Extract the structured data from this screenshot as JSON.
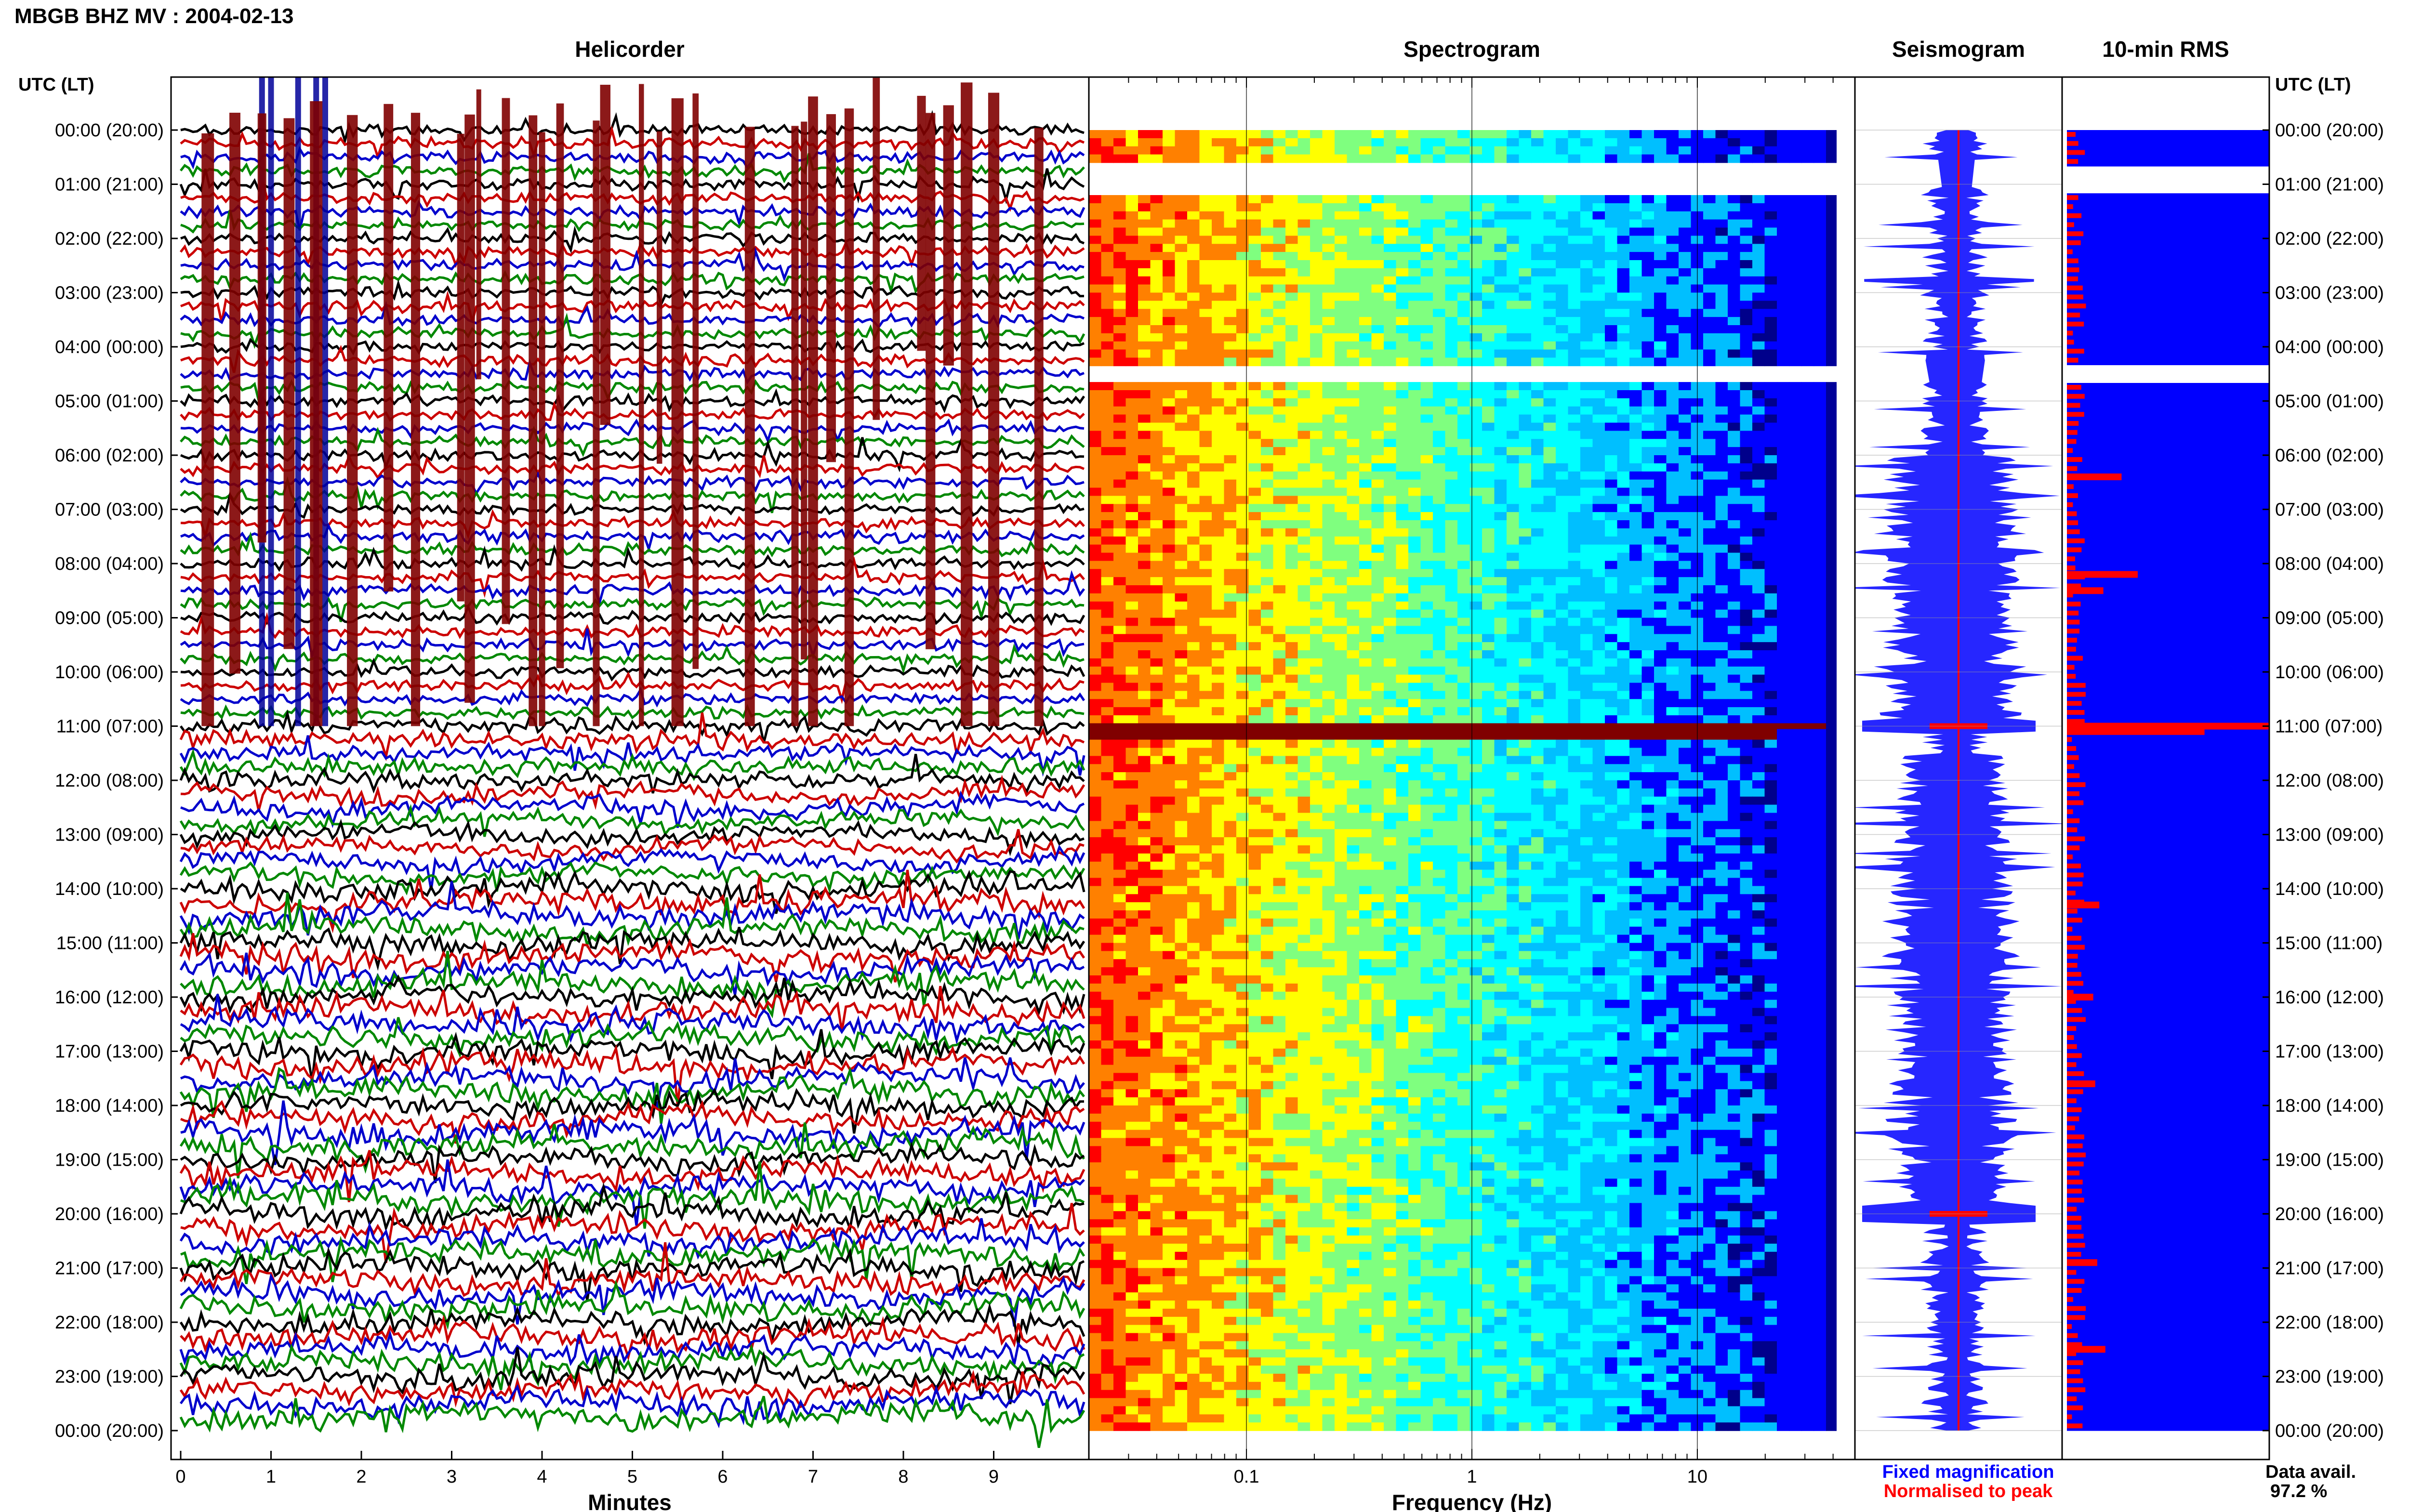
{
  "header": {
    "title": "MBGB BHZ MV : 2004-02-13"
  },
  "panels": {
    "helicorder": "Helicorder",
    "spectrogram": "Spectrogram",
    "seismogram": "Seismogram",
    "rms": "10-min RMS"
  },
  "time_axis": {
    "label": "UTC (LT)",
    "hours": [
      "00:00 (20:00)",
      "01:00 (21:00)",
      "02:00 (22:00)",
      "03:00 (23:00)",
      "04:00 (00:00)",
      "05:00 (01:00)",
      "06:00 (02:00)",
      "07:00 (03:00)",
      "08:00 (04:00)",
      "09:00 (05:00)",
      "10:00 (06:00)",
      "11:00 (07:00)",
      "12:00 (08:00)",
      "13:00 (09:00)",
      "14:00 (10:00)",
      "15:00 (11:00)",
      "16:00 (12:00)",
      "17:00 (13:00)",
      "18:00 (14:00)",
      "19:00 (15:00)",
      "20:00 (16:00)",
      "21:00 (17:00)",
      "22:00 (18:00)",
      "23:00 (19:00)",
      "00:00 (20:00)"
    ]
  },
  "legend": {
    "fixed": "Fixed magnification",
    "normalised": "Normalised to peak",
    "fixed_color": "#0000ff",
    "normalised_color": "#ff0000"
  },
  "availability": {
    "label": "Data avail.",
    "value": "97.2 %"
  },
  "chart_data": [
    {
      "type": "line",
      "panel": "helicorder",
      "xlabel": "Minutes",
      "x_ticks": [
        "0",
        "1",
        "2",
        "3",
        "4",
        "5",
        "6",
        "7",
        "8",
        "9"
      ],
      "xlim": [
        0,
        10
      ],
      "trace_colors": [
        "#000000",
        "#cc0000",
        "#0000cc",
        "#008800"
      ],
      "event_color": "#800000",
      "events": [
        {
          "hour": 0,
          "minutes": [
            0.9,
            3.1,
            3.3,
            4.2,
            4.7,
            5.3,
            6.9,
            7.2,
            8.2,
            8.5
          ]
        },
        {
          "hour": 1,
          "minutes": [
            1.2,
            3.6,
            5.7,
            7.7
          ]
        },
        {
          "hour": 3,
          "minutes": [
            0.6,
            2.3,
            4.0,
            6.3,
            8.3
          ]
        },
        {
          "hour": 5,
          "minutes": [
            1.5,
            3.2,
            5.1,
            7.4,
            9.0
          ]
        },
        {
          "hour": 7,
          "minutes": [
            0.3,
            2.6,
            4.6,
            6.8,
            8.7
          ]
        },
        {
          "hour": 9,
          "minutes": [
            1.9,
            3.9,
            5.5,
            7.0,
            9.5
          ]
        }
      ],
      "low_freq_blue_minutes": [
        0.9,
        1.0,
        1.3,
        1.5,
        1.6
      ]
    },
    {
      "type": "heatmap",
      "panel": "spectrogram",
      "xlabel": "Frequency (Hz)",
      "x_scale": "log",
      "xlim": [
        0.02,
        50
      ],
      "x_ticks": [
        "0.1",
        "1",
        "10"
      ],
      "x_tick_values": [
        0.1,
        1,
        10
      ],
      "colormap": [
        "#00008b",
        "#0000ff",
        "#00bfff",
        "#00ffff",
        "#7fff7f",
        "#ffff00",
        "#ff8000",
        "#ff0000",
        "#800000"
      ],
      "gaps_hours": [
        [
          0.6,
          1.1
        ],
        [
          4.3,
          4.6
        ]
      ],
      "strong_hour": 11.0
    },
    {
      "type": "area",
      "panel": "seismogram",
      "series": [
        {
          "name": "Fixed magnification",
          "color": "#0000ff"
        },
        {
          "name": "Normalised to peak",
          "color": "#ff0000"
        }
      ],
      "spike_hours": [
        11.0,
        20.0
      ]
    },
    {
      "type": "bar",
      "panel": "rms",
      "orientation": "horizontal",
      "bar_color": "#0000ff",
      "peak_color": "#ff0000",
      "peak_spikes": [
        {
          "hour": 6.4,
          "value": 0.27
        },
        {
          "hour": 8.2,
          "value": 0.35
        },
        {
          "hour": 8.5,
          "value": 0.18
        },
        {
          "hour": 11.0,
          "value": 1.0
        },
        {
          "hour": 11.1,
          "value": 0.68
        },
        {
          "hour": 14.3,
          "value": 0.16
        },
        {
          "hour": 16.0,
          "value": 0.13
        },
        {
          "hour": 17.6,
          "value": 0.14
        },
        {
          "hour": 20.9,
          "value": 0.15
        },
        {
          "hour": 22.5,
          "value": 0.19
        }
      ],
      "gaps_hours": [
        [
          0.6,
          1.0
        ],
        [
          4.3,
          4.6
        ]
      ]
    }
  ]
}
